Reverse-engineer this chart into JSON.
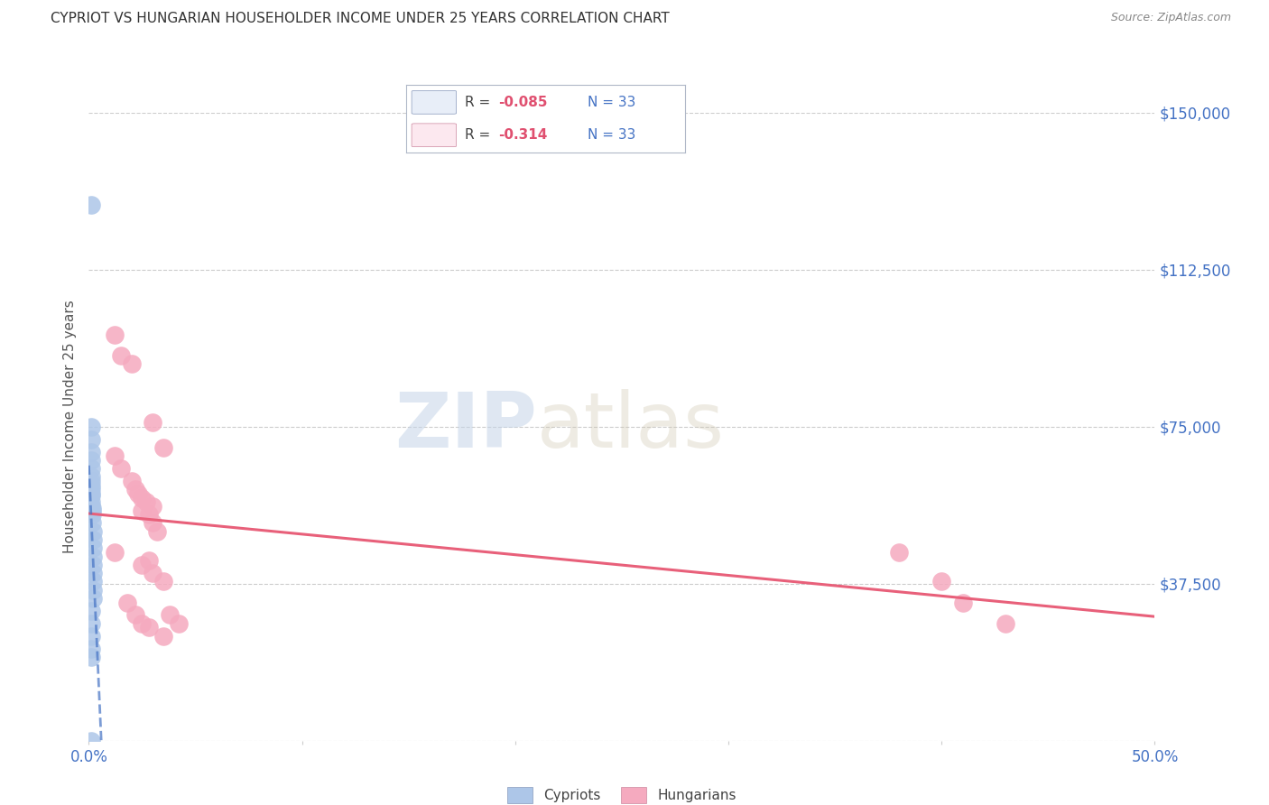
{
  "title": "CYPRIOT VS HUNGARIAN HOUSEHOLDER INCOME UNDER 25 YEARS CORRELATION CHART",
  "source": "Source: ZipAtlas.com",
  "ylabel": "Householder Income Under 25 years",
  "yticks": [
    0,
    37500,
    75000,
    112500,
    150000
  ],
  "ytick_labels": [
    "",
    "$37,500",
    "$75,000",
    "$112,500",
    "$150,000"
  ],
  "xmin": 0.0,
  "xmax": 0.5,
  "ymin": 0,
  "ymax": 150000,
  "watermark_zip": "ZIP",
  "watermark_atlas": "atlas",
  "cypriot_color": "#adc6e8",
  "hungarian_color": "#f5aabf",
  "cypriot_line_color": "#4472c4",
  "hungarian_line_color": "#e8607a",
  "legend_box_color": "#e8eef8",
  "legend_box_color2": "#fce8ef",
  "cypriot_scatter": [
    [
      0.001,
      128000
    ],
    [
      0.001,
      75000
    ],
    [
      0.001,
      72000
    ],
    [
      0.001,
      69000
    ],
    [
      0.001,
      67000
    ],
    [
      0.001,
      65000
    ],
    [
      0.001,
      63000
    ],
    [
      0.001,
      62000
    ],
    [
      0.001,
      61000
    ],
    [
      0.001,
      60000
    ],
    [
      0.001,
      59000
    ],
    [
      0.001,
      58500
    ],
    [
      0.001,
      57000
    ],
    [
      0.001,
      56000
    ],
    [
      0.0015,
      55500
    ],
    [
      0.0015,
      55000
    ],
    [
      0.0015,
      54000
    ],
    [
      0.0015,
      52000
    ],
    [
      0.002,
      50000
    ],
    [
      0.002,
      48000
    ],
    [
      0.002,
      46000
    ],
    [
      0.002,
      44000
    ],
    [
      0.002,
      42000
    ],
    [
      0.002,
      40000
    ],
    [
      0.002,
      38000
    ],
    [
      0.002,
      36000
    ],
    [
      0.002,
      34000
    ],
    [
      0.001,
      31000
    ],
    [
      0.001,
      28000
    ],
    [
      0.001,
      25000
    ],
    [
      0.001,
      22000
    ],
    [
      0.001,
      20000
    ],
    [
      0.001,
      0
    ]
  ],
  "hungarian_scatter": [
    [
      0.012,
      97000
    ],
    [
      0.015,
      92000
    ],
    [
      0.02,
      90000
    ],
    [
      0.03,
      76000
    ],
    [
      0.012,
      68000
    ],
    [
      0.015,
      65000
    ],
    [
      0.02,
      62000
    ],
    [
      0.022,
      60000
    ],
    [
      0.023,
      59000
    ],
    [
      0.025,
      58000
    ],
    [
      0.027,
      57000
    ],
    [
      0.03,
      56000
    ],
    [
      0.025,
      55000
    ],
    [
      0.028,
      54000
    ],
    [
      0.03,
      52000
    ],
    [
      0.032,
      50000
    ],
    [
      0.012,
      45000
    ],
    [
      0.028,
      43000
    ],
    [
      0.025,
      42000
    ],
    [
      0.03,
      40000
    ],
    [
      0.018,
      33000
    ],
    [
      0.022,
      30000
    ],
    [
      0.025,
      28000
    ],
    [
      0.028,
      27000
    ],
    [
      0.035,
      25000
    ],
    [
      0.035,
      38000
    ],
    [
      0.038,
      30000
    ],
    [
      0.042,
      28000
    ],
    [
      0.38,
      45000
    ],
    [
      0.4,
      38000
    ],
    [
      0.41,
      33000
    ],
    [
      0.43,
      28000
    ],
    [
      0.035,
      70000
    ]
  ]
}
